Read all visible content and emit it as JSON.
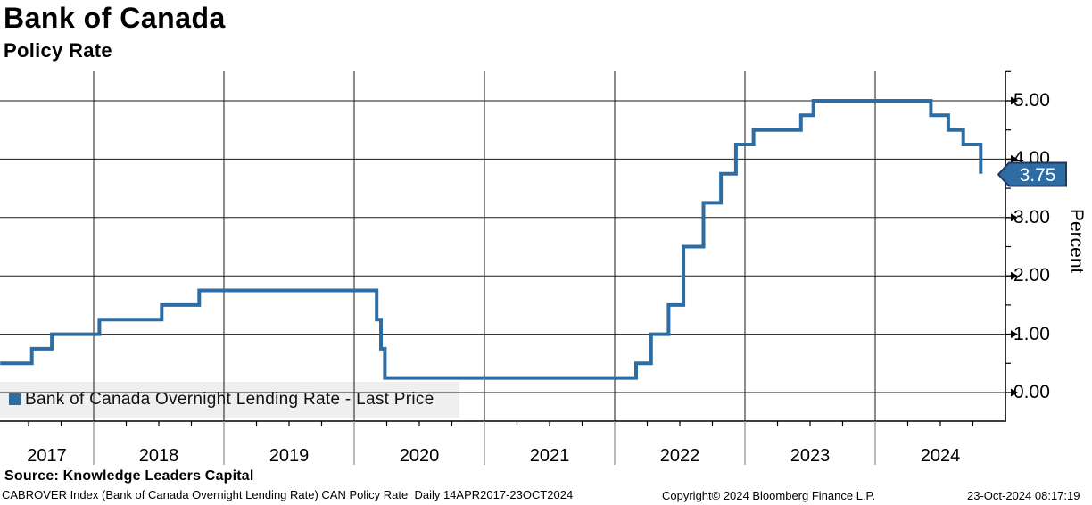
{
  "chart_data": {
    "type": "line",
    "step": true,
    "title": "Bank of Canada",
    "subtitle": "Policy Rate",
    "ylabel": "Percent",
    "xlabel": "",
    "legend": {
      "label": "Bank of Canada Overnight Lending Rate - Last Price",
      "position": "bottom-left"
    },
    "last_price_label": "3.75",
    "x_tick_labels": [
      "2017",
      "2018",
      "2019",
      "2020",
      "2021",
      "2022",
      "2023",
      "2024"
    ],
    "y_tick_labels": [
      "0.00",
      "1.00",
      "2.00",
      "3.00",
      "4.00",
      "5.00"
    ],
    "y_major_values": [
      0,
      1,
      2,
      3,
      4,
      5
    ],
    "y_minor_values": [
      0.5,
      1.5,
      2.5,
      3.5,
      4.5,
      5.5
    ],
    "ylim": [
      0,
      5.5
    ],
    "x_range": [
      "2017-04-14",
      "2024-10-23"
    ],
    "grid": true,
    "series": [
      {
        "name": "Bank of Canada Overnight Lending Rate",
        "points": [
          [
            "2017-04-14",
            0.5
          ],
          [
            "2017-07-12",
            0.75
          ],
          [
            "2017-09-06",
            1.0
          ],
          [
            "2018-01-17",
            1.25
          ],
          [
            "2018-07-11",
            1.5
          ],
          [
            "2018-10-24",
            1.75
          ],
          [
            "2020-03-04",
            1.25
          ],
          [
            "2020-03-16",
            0.75
          ],
          [
            "2020-03-27",
            0.25
          ],
          [
            "2022-03-02",
            0.5
          ],
          [
            "2022-04-13",
            1.0
          ],
          [
            "2022-06-01",
            1.5
          ],
          [
            "2022-07-13",
            2.5
          ],
          [
            "2022-09-07",
            3.25
          ],
          [
            "2022-10-26",
            3.75
          ],
          [
            "2022-12-07",
            4.25
          ],
          [
            "2023-01-25",
            4.5
          ],
          [
            "2023-06-07",
            4.75
          ],
          [
            "2023-07-12",
            5.0
          ],
          [
            "2024-06-05",
            4.75
          ],
          [
            "2024-07-24",
            4.5
          ],
          [
            "2024-09-04",
            4.25
          ],
          [
            "2024-10-23",
            3.75
          ]
        ]
      }
    ],
    "colors": {
      "line": "#2E6DA4",
      "legend_marker": "#2E6DA4",
      "legend_bg": "#EFEFEF",
      "badge_fill": "#2E6DA4",
      "badge_border": "#1F3864",
      "badge_text": "#FFFFFF",
      "grid": "#1A1A1A",
      "axis": "#000000",
      "year_tick": "#8C8C8C"
    }
  },
  "footer": {
    "source": "Source: Knowledge Leaders Capital",
    "description": "CABROVER Index (Bank of Canada Overnight Lending Rate) CAN Policy Rate  Daily 14APR2017-23OCT2024",
    "copyright": "Copyright© 2024 Bloomberg Finance L.P.",
    "timestamp": "23-Oct-2024 08:17:19"
  }
}
